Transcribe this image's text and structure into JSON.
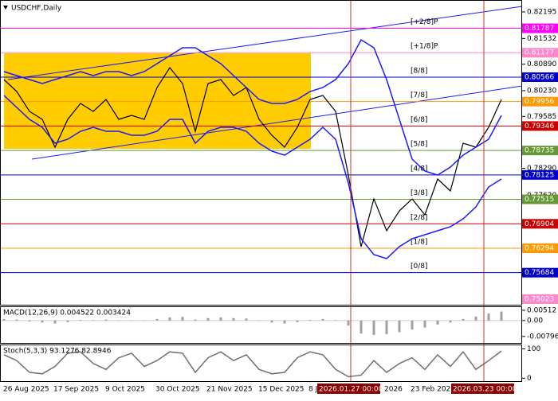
{
  "title": "USDCHF,Daily",
  "chart_data": [
    {
      "type": "line",
      "ylim": [
        0.74883,
        0.82493
      ],
      "yticks": [
        0.82195,
        0.81532,
        {
          "value": 0.8089,
          "label": "0.80890"
        },
        {
          "value": 0.8023,
          "label": "0.80230"
        },
        0.79585,
        {
          "value": 0.7829,
          "label": "0.78290"
        },
        {
          "value": 0.7762,
          "label": "0.77620"
        }
      ],
      "series": [
        {
          "color": "#000000",
          "values": [
            0.80506,
            0.80208,
            0.79711,
            0.79513,
            0.78817,
            0.79513,
            0.7991,
            0.79711,
            0.80009,
            0.79513,
            0.79612,
            0.79513,
            0.80307,
            0.80804,
            0.80407,
            0.79214,
            0.80407,
            0.80506,
            0.80109,
            0.80307,
            0.79513,
            0.79115,
            0.78817,
            0.79314,
            0.80009,
            0.80109,
            0.79711,
            0.78122,
            0.76333,
            0.77526,
            0.76731,
            0.77227,
            0.77526,
            0.77128,
            0.78022,
            0.77724,
            0.78916,
            0.78817,
            0.79314,
            0.80009
          ]
        },
        {
          "color": "#1a1aff",
          "values": [
            0.80705,
            0.80605,
            0.80506,
            0.80407,
            0.80506,
            0.80605,
            0.80705,
            0.80605,
            0.80705,
            0.80705,
            0.80605,
            0.80705,
            0.80903,
            0.81102,
            0.81301,
            0.81301,
            0.81102,
            0.80903,
            0.80605,
            0.80307,
            0.80009,
            0.7991,
            0.7991,
            0.80009,
            0.80208,
            0.80307,
            0.80506,
            0.80903,
            0.815,
            0.81301,
            0.80506,
            0.79513,
            0.78519,
            0.78221,
            0.78122,
            0.7832,
            0.78618,
            0.78817,
            0.79016,
            0.79612
          ]
        },
        {
          "color": "#1a1aff",
          "values": [
            0.80109,
            0.79811,
            0.79513,
            0.79314,
            0.78917,
            0.79016,
            0.79214,
            0.79314,
            0.79214,
            0.79214,
            0.79115,
            0.79115,
            0.79214,
            0.79513,
            0.79513,
            0.78917,
            0.79214,
            0.79314,
            0.79314,
            0.79214,
            0.78917,
            0.78718,
            0.78618,
            0.78817,
            0.79016,
            0.79314,
            0.79016,
            0.77923,
            0.76532,
            0.76135,
            0.76035,
            0.76333,
            0.76532,
            0.76631,
            0.76731,
            0.7683,
            0.77029,
            0.77327,
            0.77824,
            0.78022
          ]
        }
      ],
      "levels": [
        {
          "label": "[+2/8]P",
          "value": 0.81787,
          "color": "#ff00ff"
        },
        {
          "label": "[+1/8]P",
          "value": 0.81177,
          "color": "#ff88cc"
        },
        {
          "label": "[8/8]",
          "value": 0.80566,
          "color": "#0000cc"
        },
        {
          "label": "[7/8]",
          "value": 0.79956,
          "color": "#ff9900"
        },
        {
          "label": "[6/8]",
          "value": 0.79346,
          "color": "#cc0000"
        },
        {
          "label": "[5/8]",
          "value": 0.78735,
          "color": "#669933"
        },
        {
          "label": "[4/8]",
          "value": 0.78125,
          "color": "#0000cc"
        },
        {
          "label": "[3/8]",
          "value": 0.77515,
          "color": "#669933"
        },
        {
          "label": "[2/8]",
          "value": 0.76904,
          "color": "#cc0000"
        },
        {
          "label": "[1/8]",
          "value": 0.76294,
          "color": "#ff9900"
        },
        {
          "label": "[0/8]",
          "value": 0.75684,
          "color": "#0000cc"
        }
      ],
      "boxed_ticks": [
        {
          "value": 0.75023,
          "color": "#ff88cc"
        }
      ]
    },
    {
      "type": "bar",
      "title": "MACD(12,26,9) 0.004522 0.003424",
      "color": "#a0a0a0",
      "ylim": [
        -0.0112,
        0.0071
      ],
      "yticks": [
        0.00512,
        {
          "value": 0,
          "label": "0.00"
        },
        -0.007968
      ],
      "values": [
        0.0008,
        0.0005,
        -0.0005,
        -0.001,
        -0.0015,
        -0.0008,
        0.0003,
        0.0002,
        0.0005,
        0,
        -0.0002,
        0,
        0.0008,
        0.0015,
        0.0018,
        0.0005,
        0.0012,
        0.0015,
        0.0012,
        0.001,
        -0.0002,
        -0.001,
        -0.0015,
        -0.0008,
        0.0003,
        0.0008,
        0.0002,
        -0.0025,
        -0.0065,
        -0.0072,
        -0.0068,
        -0.0058,
        -0.0045,
        -0.0035,
        -0.002,
        -0.001,
        0.0008,
        0.002,
        0.0035,
        0.0045
      ]
    },
    {
      "type": "line",
      "title": "Stoch(5,3,3) 93.1276 82.8946",
      "ylim": [
        -10,
        115
      ],
      "yticks": [
        100,
        0
      ],
      "series": [
        {
          "color": "#707070",
          "values": [
            80,
            60,
            20,
            15,
            40,
            85,
            90,
            50,
            30,
            70,
            85,
            40,
            60,
            90,
            85,
            20,
            70,
            90,
            60,
            80,
            30,
            15,
            20,
            70,
            90,
            80,
            30,
            5,
            10,
            60,
            20,
            50,
            70,
            30,
            80,
            40,
            90,
            30,
            60,
            93
          ]
        }
      ]
    }
  ],
  "x_axis_labels": [
    {
      "text": "26 Aug 2025"
    },
    {
      "text": "17 Sep 2025"
    },
    {
      "text": "9 Oct 2025"
    },
    {
      "text": "30 Oct 2025"
    },
    {
      "text": "21 Nov 2025"
    },
    {
      "text": "15 Dec 2025"
    },
    {
      "text": "8 J"
    },
    {
      "text": "2026.01.27 00:00",
      "highlight": true
    },
    {
      "text": "2026"
    },
    {
      "text": "23 Feb 2026"
    },
    {
      "text": "2026.03.23 00:00",
      "highlight": true
    }
  ]
}
